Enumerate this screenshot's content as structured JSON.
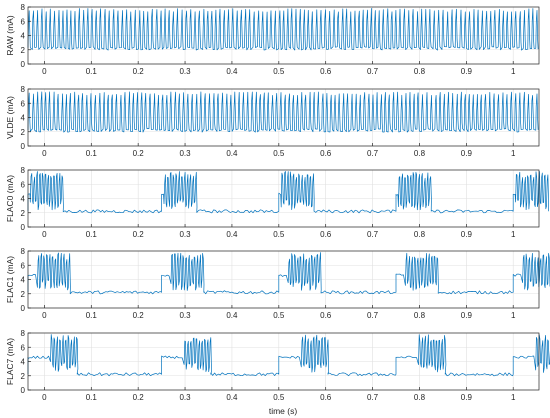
{
  "chart_data": {
    "type": "line",
    "xlabel": "time (s)",
    "xlim": [
      -0.035,
      1.055
    ],
    "ylim": [
      0,
      8
    ],
    "xticks": [
      "0",
      "0.1",
      "0.2",
      "0.3",
      "0.4",
      "0.5",
      "0.6",
      "0.7",
      "0.8",
      "0.9",
      "1"
    ],
    "yticks": [
      "0",
      "2",
      "4",
      "6",
      "8"
    ],
    "grid": true,
    "line_color": "#0072bd",
    "panels": [
      {
        "ylabel": "RAW (mA)",
        "pattern": "continuous",
        "baseline_mA": 2.2,
        "peak_mA": 7.8,
        "burst_start_s": [],
        "burst_length_s": 0,
        "lead_length_s": 0,
        "lead_level_mA": 0
      },
      {
        "ylabel": "VLDE (mA)",
        "pattern": "continuous",
        "baseline_mA": 2.2,
        "peak_mA": 7.6,
        "burst_start_s": [],
        "burst_length_s": 0,
        "lead_length_s": 0,
        "lead_level_mA": 0
      },
      {
        "ylabel": "FLAC0 (mA)",
        "pattern": "bursts",
        "baseline_mA": 2.2,
        "peak_mA": 7.8,
        "burst_start_s": [
          -0.035,
          0.25,
          0.5,
          0.75,
          1.0
        ],
        "burst_length_s": 0.075,
        "lead_length_s": 0.005,
        "lead_level_mA": 4.6
      },
      {
        "ylabel": "FLAC1 (mA)",
        "pattern": "bursts",
        "baseline_mA": 2.2,
        "peak_mA": 7.8,
        "burst_start_s": [
          -0.035,
          0.25,
          0.5,
          0.75,
          1.0
        ],
        "burst_length_s": 0.09,
        "lead_length_s": 0.02,
        "lead_level_mA": 4.6
      },
      {
        "ylabel": "FLAC7 (mA)",
        "pattern": "bursts",
        "baseline_mA": 2.2,
        "peak_mA": 7.8,
        "burst_start_s": [
          -0.035,
          0.25,
          0.5,
          0.75,
          1.0
        ],
        "burst_length_s": 0.105,
        "lead_length_s": 0.048,
        "lead_level_mA": 4.6
      }
    ]
  }
}
